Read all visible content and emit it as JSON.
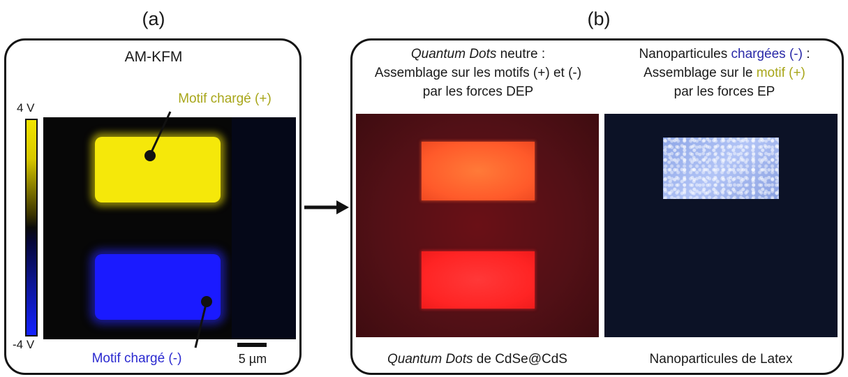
{
  "panel_a": {
    "label": "(a)",
    "title": "AM-KFM",
    "colorbar": {
      "max_label": "4 V",
      "min_label": "-4 V",
      "colors": [
        "#f2e400",
        "#0a0a0a",
        "#1422ff"
      ]
    },
    "annotation_positive": {
      "text": "Motif chargé (+)",
      "color": "#a8a61a"
    },
    "annotation_negative": {
      "text": "Motif chargé (-)",
      "color": "#2b2ad0"
    },
    "scale_bar": "5 µm",
    "rect_colors": {
      "positive": "#f5e80a",
      "negative": "#1a1aff"
    }
  },
  "arrow": {
    "icon": "right-arrow-icon"
  },
  "panel_b": {
    "label": "(b)",
    "left": {
      "caption_line1_em": "Quantum Dots",
      "caption_line1_rest": " neutre :",
      "caption_line2": "Assemblage sur les motifs (+) et (-)",
      "caption_line3": "par les forces DEP",
      "bottom_em": "Quantum Dots",
      "bottom_rest": " de CdSe@CdS",
      "colors": {
        "background": "#5a0d12",
        "top_rect": "#ff5a2a",
        "bottom_rect": "#ff2424"
      }
    },
    "right": {
      "caption_line1_a": "Nanoparticules ",
      "caption_line1_b": "chargées (-)",
      "caption_line1_c": " :",
      "caption_line2_a": "Assemblage sur le ",
      "caption_line2_b": "motif (+)",
      "caption_line3": "par les forces EP",
      "bottom": "Nanoparticules de Latex",
      "colors": {
        "highlight_blue": "#2a2aa8",
        "highlight_olive": "#a8a61a",
        "background": "#0c1226",
        "rect": "#9fb4f0"
      }
    }
  }
}
